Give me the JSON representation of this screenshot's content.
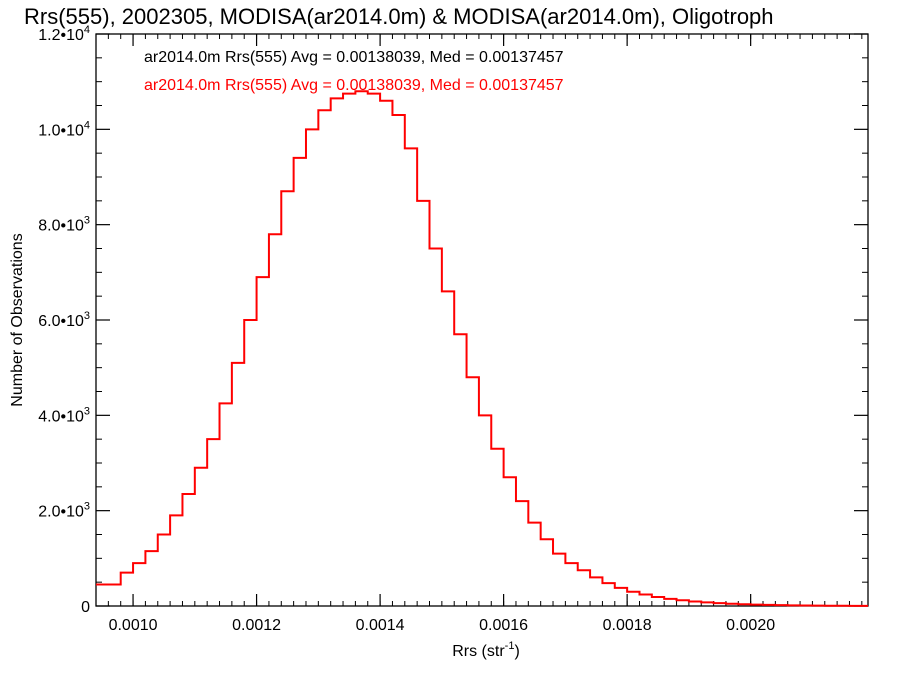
{
  "chart_data": {
    "type": "histogram-step",
    "title": "Rrs(555), 2002305, MODISA(ar2014.0m) & MODISA(ar2014.0m), Oligotroph",
    "xlabel": "Rrs (str",
    "xlabel_sup": "-1",
    "xlabel_close": ")",
    "ylabel": "Number of Observations",
    "xlim": [
      0.00094,
      0.00219
    ],
    "ylim": [
      0,
      12000
    ],
    "x_ticks": [
      {
        "value": 0.001,
        "label": "0.0010"
      },
      {
        "value": 0.0012,
        "label": "0.0012"
      },
      {
        "value": 0.0014,
        "label": "0.0014"
      },
      {
        "value": 0.0016,
        "label": "0.0016"
      },
      {
        "value": 0.0018,
        "label": "0.0018"
      },
      {
        "value": 0.002,
        "label": "0.0020"
      }
    ],
    "y_ticks": [
      {
        "value": 0,
        "mant": "0",
        "exp": ""
      },
      {
        "value": 2000,
        "mant": "2.0•10",
        "exp": "3"
      },
      {
        "value": 4000,
        "mant": "4.0•10",
        "exp": "3"
      },
      {
        "value": 6000,
        "mant": "6.0•10",
        "exp": "3"
      },
      {
        "value": 8000,
        "mant": "8.0•10",
        "exp": "3"
      },
      {
        "value": 10000,
        "mant": "1.0•10",
        "exp": "4"
      },
      {
        "value": 12000,
        "mant": "1.2•10",
        "exp": "4"
      }
    ],
    "legend": [
      {
        "text": "ar2014.0m Rrs(555) Avg = 0.00138039, Med = 0.00137457",
        "color": "#000000"
      },
      {
        "text": "ar2014.0m Rrs(555) Avg = 0.00138039, Med = 0.00137457",
        "color": "#ff0000"
      }
    ],
    "series": [
      {
        "color": "#ff0000",
        "x": [
          0.00094,
          0.00098,
          0.001,
          0.00102,
          0.00104,
          0.00106,
          0.00108,
          0.0011,
          0.00112,
          0.00114,
          0.00116,
          0.00118,
          0.0012,
          0.00122,
          0.00124,
          0.00126,
          0.00128,
          0.0013,
          0.00132,
          0.00134,
          0.00136,
          0.00138,
          0.0014,
          0.00142,
          0.00144,
          0.00146,
          0.00148,
          0.0015,
          0.00152,
          0.00154,
          0.00156,
          0.00158,
          0.0016,
          0.00162,
          0.00164,
          0.00166,
          0.00168,
          0.0017,
          0.00172,
          0.00174,
          0.00176,
          0.00178,
          0.0018,
          0.00182,
          0.00184,
          0.00186,
          0.00188,
          0.0019,
          0.00192,
          0.00194,
          0.00196,
          0.00198,
          0.002,
          0.00202,
          0.00204,
          0.00206,
          0.00208,
          0.0021,
          0.00212,
          0.00214,
          0.00216,
          0.00218
        ],
        "y": [
          450,
          700,
          900,
          1150,
          1500,
          1900,
          2350,
          2900,
          3500,
          4250,
          5100,
          6000,
          6900,
          7800,
          8700,
          9400,
          10000,
          10400,
          10650,
          10750,
          10800,
          10750,
          10600,
          10300,
          9600,
          8500,
          7500,
          6600,
          5700,
          4800,
          4000,
          3300,
          2700,
          2200,
          1750,
          1400,
          1100,
          900,
          750,
          600,
          480,
          380,
          300,
          240,
          190,
          150,
          120,
          95,
          75,
          60,
          48,
          38,
          30,
          24,
          18,
          14,
          10,
          8,
          6,
          4,
          3,
          2
        ]
      }
    ]
  }
}
